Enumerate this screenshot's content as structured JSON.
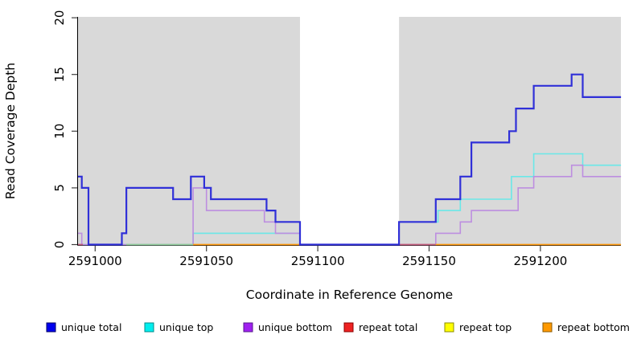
{
  "chart_data": {
    "type": "line",
    "subtype": "step-coverage",
    "title": "",
    "xlabel": "Coordinate in Reference Genome",
    "ylabel": "Read Coverage Depth",
    "xlim": [
      2590992.3,
      2591236.2
    ],
    "ylim": [
      0,
      20
    ],
    "grid": false,
    "x_ticks": [
      2591000,
      2591050,
      2591100,
      2591150,
      2591200
    ],
    "y_ticks": [
      0,
      5,
      10,
      15,
      20
    ],
    "panel_color": "#d9d9d9",
    "gap_region": {
      "note": "white unshaded interval in panel",
      "from": 2591092,
      "to": 2591136.5
    },
    "series": [
      {
        "name": "unique total",
        "color": "#3030d8",
        "width": 2.2,
        "points": [
          [
            2590992.3,
            6
          ],
          [
            2590994,
            5
          ],
          [
            2590997,
            0
          ],
          [
            2591012,
            1
          ],
          [
            2591014,
            5
          ],
          [
            2591035,
            4
          ],
          [
            2591043,
            6
          ],
          [
            2591049,
            5
          ],
          [
            2591052,
            4
          ],
          [
            2591077,
            3
          ],
          [
            2591081,
            2
          ],
          [
            2591092,
            0
          ],
          [
            2591136.5,
            2
          ],
          [
            2591153,
            4
          ],
          [
            2591164,
            6
          ],
          [
            2591169,
            9
          ],
          [
            2591186,
            10
          ],
          [
            2591189,
            12
          ],
          [
            2591197,
            14
          ],
          [
            2591214,
            15
          ],
          [
            2591219,
            13
          ]
        ]
      },
      {
        "name": "unique top",
        "color": "#6ae8e8",
        "width": 1.6,
        "points": [
          [
            2590992.3,
            0
          ],
          [
            2591044,
            1
          ],
          [
            2591092,
            0
          ],
          [
            2591136.5,
            2
          ],
          [
            2591154,
            3
          ],
          [
            2591164,
            4
          ],
          [
            2591187,
            6
          ],
          [
            2591197,
            8
          ],
          [
            2591219,
            7
          ]
        ]
      },
      {
        "name": "unique bottom",
        "color": "#bd8ee0",
        "width": 1.6,
        "points": [
          [
            2590992.3,
            1
          ],
          [
            2590994,
            0
          ],
          [
            2591044,
            5
          ],
          [
            2591050,
            3
          ],
          [
            2591076,
            2
          ],
          [
            2591081,
            1
          ],
          [
            2591092,
            0
          ],
          [
            2591153,
            1
          ],
          [
            2591164,
            2
          ],
          [
            2591169,
            3
          ],
          [
            2591190,
            5
          ],
          [
            2591197,
            6
          ],
          [
            2591214,
            7
          ],
          [
            2591219,
            6
          ]
        ]
      },
      {
        "name": "repeat total",
        "color": "#c4607e",
        "width": 1.8,
        "depth": 0,
        "visible_zero_segments": [
          [
            2590992.3,
            2590994.5
          ],
          [
            2591136.5,
            2591153
          ]
        ]
      },
      {
        "name": "repeat top",
        "color": "#95cf9e",
        "width": 1.8,
        "depth": 0,
        "visible_zero_segments": [
          [
            2591014,
            2591044
          ]
        ]
      },
      {
        "name": "repeat bottom",
        "color": "#ff9d14",
        "width": 1.8,
        "depth": 0,
        "visible_zero_segments": [
          [
            2591044,
            2591092
          ],
          [
            2591153,
            2591236.2
          ]
        ]
      }
    ]
  },
  "legend": {
    "items": [
      {
        "label": "unique total",
        "fill": "#0000ee",
        "border": "#000066"
      },
      {
        "label": "unique top",
        "fill": "#00eeee",
        "border": "#008b8b"
      },
      {
        "label": "unique bottom",
        "fill": "#a020f0",
        "border": "#551a8b"
      },
      {
        "label": "repeat total",
        "fill": "#ee2222",
        "border": "#8b0000"
      },
      {
        "label": "repeat top",
        "fill": "#ffff00",
        "border": "#8b8b00"
      },
      {
        "label": "repeat bottom",
        "fill": "#ff9900",
        "border": "#8b5a00"
      }
    ]
  }
}
